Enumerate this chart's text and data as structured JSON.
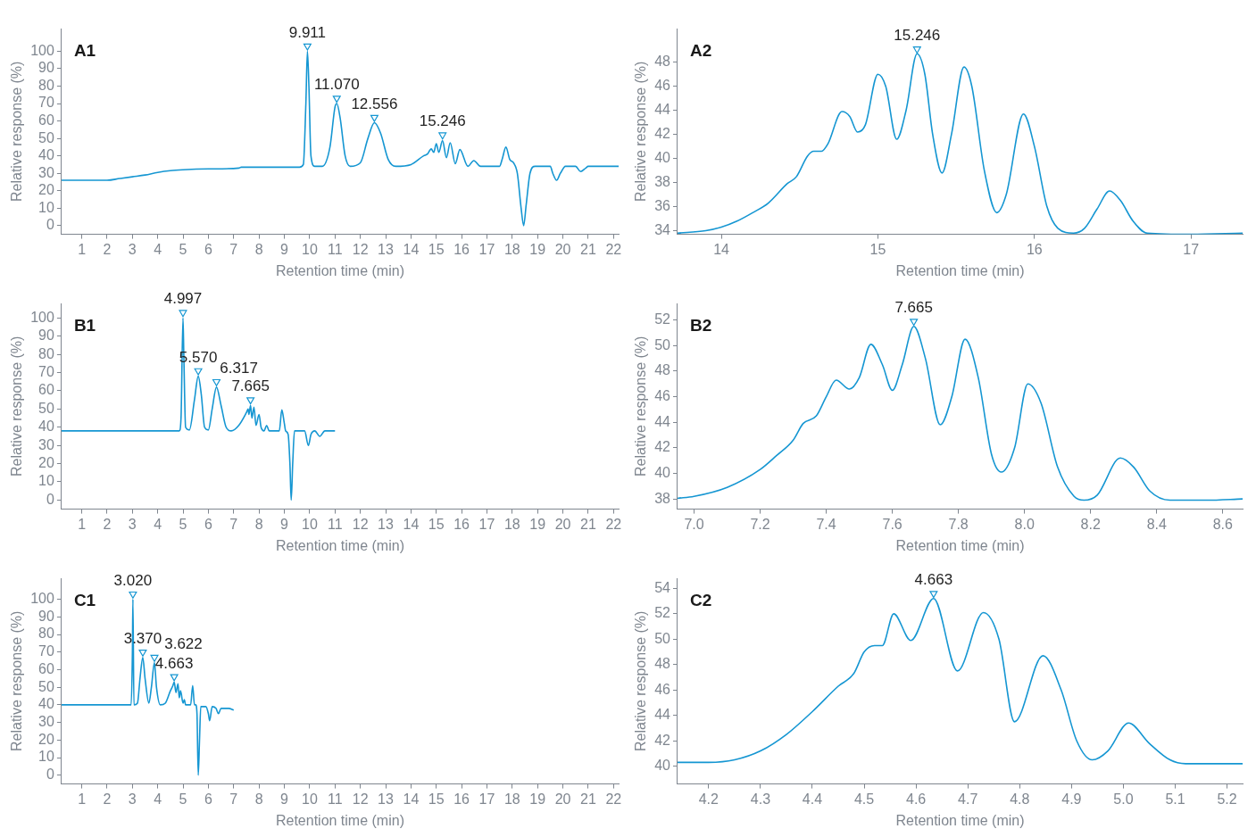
{
  "chart_data": [
    {
      "type": "line",
      "title": "A1",
      "xlabel": "Retention time (min)",
      "ylabel": "Relative response (%)",
      "xlim": [
        0.2,
        22.2
      ],
      "xticks": [
        1,
        2,
        3,
        4,
        5,
        6,
        7,
        8,
        9,
        10,
        11,
        12,
        13,
        14,
        15,
        16,
        17,
        18,
        19,
        20,
        21,
        22
      ],
      "ylim": [
        -5,
        113
      ],
      "yticks": [
        0,
        10,
        20,
        30,
        40,
        50,
        60,
        70,
        80,
        90,
        100
      ],
      "series": [
        {
          "color": "#1596d2",
          "x": [
            0.2,
            2,
            2.5,
            3,
            3.5,
            4,
            4.5,
            5,
            6,
            7.2,
            7.3,
            9.6,
            9.75,
            9.85,
            9.911,
            9.97,
            10.05,
            10.2,
            10.5,
            10.8,
            11.0,
            11.07,
            11.2,
            11.4,
            11.6,
            12.0,
            12.3,
            12.556,
            12.8,
            13.1,
            13.4,
            14.0,
            14.5,
            14.65,
            14.8,
            14.9,
            15.0,
            15.1,
            15.246,
            15.4,
            15.55,
            15.75,
            15.93,
            16.25,
            16.48,
            16.75,
            17.5,
            17.6,
            17.75,
            17.9,
            18.05,
            18.2,
            18.35,
            18.45,
            18.55,
            18.7,
            18.9,
            19.5,
            19.6,
            19.75,
            19.9,
            20.1,
            20.5,
            20.7,
            20.9,
            21.0,
            22.2
          ],
          "values": [
            26,
            26,
            27,
            28,
            29,
            30.5,
            31.5,
            32,
            32.5,
            33,
            33.5,
            33.5,
            35,
            70,
            100,
            80,
            40,
            34,
            34,
            45,
            68,
            70,
            62,
            40,
            34,
            36,
            50,
            59,
            53,
            38,
            34,
            35,
            40,
            41,
            44,
            42,
            47,
            42,
            48.7,
            39,
            47.5,
            35.5,
            43.6,
            34,
            37.3,
            34,
            34,
            38,
            45,
            38,
            36,
            30,
            10,
            0,
            12,
            30,
            34,
            34,
            30,
            26,
            30,
            34,
            34,
            31,
            33,
            34,
            34
          ]
        },
        {
          "type": "scatter",
          "marker": "triangle",
          "color": "#1596d2",
          "x": [
            9.911,
            11.07,
            12.556,
            15.246
          ],
          "values": [
            103,
            73,
            62,
            52
          ]
        }
      ],
      "annotations": [
        {
          "text": "9.911",
          "x": 9.911,
          "y": 103
        },
        {
          "text": "11.070",
          "x": 11.07,
          "y": 73
        },
        {
          "text": "12.556",
          "x": 12.556,
          "y": 62
        },
        {
          "text": "15.246",
          "x": 15.246,
          "y": 52
        }
      ]
    },
    {
      "type": "line",
      "title": "A2",
      "xlabel": "Retention time (min)",
      "ylabel": "Relative response (%)",
      "xlim": [
        13.72,
        17.33
      ],
      "xticks": [
        14,
        15,
        16,
        17
      ],
      "ylim": [
        33.7,
        50.8
      ],
      "yticks": [
        34,
        36,
        38,
        40,
        42,
        44,
        46,
        48
      ],
      "series": [
        {
          "color": "#1596d2",
          "x": [
            13.72,
            13.9,
            14.0,
            14.1,
            14.2,
            14.3,
            14.42,
            14.48,
            14.55,
            14.59,
            14.64,
            14.68,
            14.77,
            14.82,
            14.87,
            14.92,
            15.0,
            15.05,
            15.12,
            15.18,
            15.25,
            15.3,
            15.35,
            15.41,
            15.47,
            15.55,
            15.6,
            15.68,
            15.76,
            15.82,
            15.93,
            16.0,
            16.08,
            16.15,
            16.25,
            16.32,
            16.4,
            16.48,
            16.55,
            16.63,
            16.72,
            17.0,
            17.33
          ],
          "values": [
            33.8,
            34,
            34.3,
            34.8,
            35.5,
            36.3,
            37.9,
            38.5,
            40.2,
            40.6,
            40.6,
            41.2,
            43.9,
            43.5,
            42.2,
            42.8,
            47,
            46,
            41.6,
            44,
            48.7,
            47,
            42,
            38.8,
            42,
            47.6,
            46,
            39,
            35.5,
            37,
            43.7,
            41,
            36,
            34.2,
            33.8,
            34.2,
            35.8,
            37.3,
            36.5,
            34.8,
            33.8,
            33.7,
            33.8
          ]
        },
        {
          "type": "scatter",
          "marker": "triangle",
          "color": "#1596d2",
          "x": [
            15.25
          ],
          "values": [
            49.1
          ]
        }
      ],
      "annotations": [
        {
          "text": "15.246",
          "x": 15.25,
          "y": 49.1
        }
      ]
    },
    {
      "type": "line",
      "title": "B1",
      "xlabel": "Retention time (min)",
      "ylabel": "Relative response (%)",
      "xlim": [
        0.2,
        22.2
      ],
      "xticks": [
        1,
        2,
        3,
        4,
        5,
        6,
        7,
        8,
        9,
        10,
        11,
        12,
        13,
        14,
        15,
        16,
        17,
        18,
        19,
        20,
        21,
        22
      ],
      "ylim": [
        -5,
        108
      ],
      "yticks": [
        0,
        10,
        20,
        30,
        40,
        50,
        60,
        70,
        80,
        90,
        100
      ],
      "series": [
        {
          "color": "#1596d2",
          "x": [
            0.2,
            4.85,
            4.92,
            4.997,
            5.03,
            5.1,
            5.25,
            5.45,
            5.6,
            5.72,
            5.85,
            6.0,
            6.15,
            6.32,
            6.5,
            6.7,
            6.9,
            7.2,
            7.5,
            7.57,
            7.6,
            7.665,
            7.72,
            7.8,
            7.88,
            8.0,
            8.08,
            8.2,
            8.3,
            8.4,
            8.8,
            8.9,
            9.0,
            9.05,
            9.15,
            9.22,
            9.27,
            9.33,
            9.4,
            9.8,
            9.95,
            10.05,
            10.2,
            10.4,
            10.6,
            11.0
          ],
          "values": [
            38,
            38,
            45,
            100,
            80,
            40,
            38.5,
            55,
            68,
            58,
            40,
            38.5,
            50,
            62,
            52,
            40,
            38,
            41,
            48,
            50,
            47,
            52,
            45,
            51,
            41,
            47,
            40,
            38,
            41,
            38,
            38,
            49.5,
            42,
            38,
            36,
            20,
            0,
            20,
            38,
            38,
            30,
            36,
            38,
            35,
            38,
            38
          ]
        },
        {
          "type": "scatter",
          "marker": "triangle",
          "color": "#1596d2",
          "x": [
            4.997,
            5.6,
            6.32,
            7.665
          ],
          "values": [
            103,
            71,
            65,
            55
          ]
        }
      ],
      "annotations": [
        {
          "text": "4.997",
          "x": 4.997,
          "y": 103
        },
        {
          "text": "5.570",
          "x": 5.6,
          "y": 71
        },
        {
          "text": "6.317",
          "x": 6.32,
          "y": 65
        },
        {
          "text": "7.665",
          "x": 7.665,
          "y": 55
        }
      ]
    },
    {
      "type": "line",
      "title": "B2",
      "xlabel": "Retention time (min)",
      "ylabel": "Relative response (%)",
      "xlim": [
        6.95,
        8.66
      ],
      "xticks": [
        {
          "value": 7.0,
          "label": "7.0"
        },
        7.2,
        7.4,
        7.6,
        7.8,
        {
          "value": 8.0,
          "label": "8.0"
        },
        8.2,
        8.4,
        8.6
      ],
      "ylim": [
        37.2,
        53.3
      ],
      "yticks": [
        38,
        40,
        42,
        44,
        46,
        48,
        50,
        52
      ],
      "series": [
        {
          "color": "#1596d2",
          "x": [
            6.95,
            7.0,
            7.1,
            7.2,
            7.25,
            7.3,
            7.33,
            7.37,
            7.4,
            7.43,
            7.47,
            7.5,
            7.535,
            7.57,
            7.6,
            7.63,
            7.665,
            7.7,
            7.745,
            7.78,
            7.82,
            7.86,
            7.9,
            7.93,
            7.97,
            8.01,
            8.05,
            8.1,
            8.15,
            8.18,
            8.22,
            8.29,
            8.33,
            8.38,
            8.44,
            8.55,
            8.66
          ],
          "values": [
            38.05,
            38.2,
            38.9,
            40.3,
            41.4,
            42.6,
            43.9,
            44.5,
            46,
            47.3,
            46.6,
            47.5,
            50.1,
            48.5,
            46.5,
            48.5,
            51.5,
            49,
            43.8,
            46,
            50.5,
            47.5,
            41.5,
            40.1,
            42,
            47,
            45.5,
            40.5,
            38.2,
            37.9,
            38.3,
            41.2,
            40.5,
            38.6,
            37.9,
            37.9,
            38
          ]
        },
        {
          "type": "scatter",
          "marker": "triangle",
          "color": "#1596d2",
          "x": [
            7.665
          ],
          "values": [
            51.9
          ]
        }
      ],
      "annotations": [
        {
          "text": "7.665",
          "x": 7.665,
          "y": 51.9
        }
      ]
    },
    {
      "type": "line",
      "title": "C1",
      "xlabel": "Retention time (min)",
      "ylabel": "Relative response (%)",
      "xlim": [
        0.2,
        22.2
      ],
      "xticks": [
        1,
        2,
        3,
        4,
        5,
        6,
        7,
        8,
        9,
        10,
        11,
        12,
        13,
        14,
        15,
        16,
        17,
        18,
        19,
        20,
        21,
        22
      ],
      "ylim": [
        -5,
        112
      ],
      "yticks": [
        0,
        10,
        20,
        30,
        40,
        50,
        60,
        70,
        80,
        90,
        100
      ],
      "series": [
        {
          "color": "#1596d2",
          "x": [
            0.2,
            2.95,
            3.0,
            3.02,
            3.06,
            3.2,
            3.3,
            3.41,
            3.5,
            3.65,
            3.75,
            3.87,
            3.95,
            4.1,
            4.3,
            4.5,
            4.6,
            4.65,
            4.72,
            4.8,
            4.85,
            4.9,
            5.0,
            5.05,
            5.1,
            5.3,
            5.38,
            5.45,
            5.5,
            5.55,
            5.6,
            5.65,
            5.7,
            5.9,
            6.0,
            6.05,
            6.15,
            6.3,
            6.4,
            6.5,
            6.8,
            7.0
          ],
          "values": [
            40,
            40,
            70,
            100,
            40,
            41,
            55,
            67,
            55,
            41,
            50,
            64,
            50,
            40,
            41,
            48,
            51,
            53,
            47,
            52,
            44,
            48,
            41,
            43,
            40,
            40,
            51,
            40,
            40,
            35,
            0,
            20,
            39,
            39,
            35,
            31,
            39,
            38,
            35,
            38,
            38,
            37
          ]
        },
        {
          "type": "scatter",
          "marker": "triangle",
          "color": "#1596d2",
          "x": [
            3.02,
            3.41,
            3.87,
            4.65
          ],
          "values": [
            103,
            70,
            67,
            56
          ]
        }
      ],
      "annotations": [
        {
          "text": "3.020",
          "x": 3.02,
          "y": 103
        },
        {
          "text": "3.370",
          "x": 3.41,
          "y": 70
        },
        {
          "text": "3.622",
          "x": 3.87,
          "y": 67
        },
        {
          "text": "4.663",
          "x": 4.65,
          "y": 56
        }
      ]
    },
    {
      "type": "line",
      "title": "C2",
      "xlabel": "Retention time (min)",
      "ylabel": "Relative response (%)",
      "xlim": [
        4.14,
        5.23
      ],
      "xticks": [
        4.2,
        4.3,
        4.4,
        4.5,
        4.6,
        4.7,
        4.8,
        4.9,
        {
          "value": 5.0,
          "label": "5.0"
        },
        5.1,
        5.2
      ],
      "ylim": [
        38.6,
        54.8
      ],
      "yticks": [
        40,
        42,
        44,
        46,
        48,
        50,
        52,
        54
      ],
      "series": [
        {
          "color": "#1596d2",
          "x": [
            4.14,
            4.2,
            4.25,
            4.3,
            4.35,
            4.4,
            4.45,
            4.48,
            4.5,
            4.52,
            4.535,
            4.557,
            4.59,
            4.634,
            4.68,
            4.73,
            4.76,
            4.79,
            4.845,
            4.88,
            4.91,
            4.94,
            4.97,
            5.01,
            5.05,
            5.09,
            5.12,
            5.23
          ],
          "values": [
            40.3,
            40.3,
            40.5,
            41.2,
            42.5,
            44.3,
            46.3,
            47.3,
            49,
            49.5,
            49.5,
            52,
            49.9,
            53.2,
            47.5,
            52.1,
            50,
            43.5,
            48.7,
            46,
            42,
            40.5,
            41.2,
            43.4,
            41.8,
            40.5,
            40.2,
            40.2
          ]
        },
        {
          "type": "scatter",
          "marker": "triangle",
          "color": "#1596d2",
          "x": [
            4.634
          ],
          "values": [
            53.6
          ]
        }
      ],
      "annotations": [
        {
          "text": "4.663",
          "x": 4.634,
          "y": 53.6
        }
      ]
    }
  ]
}
